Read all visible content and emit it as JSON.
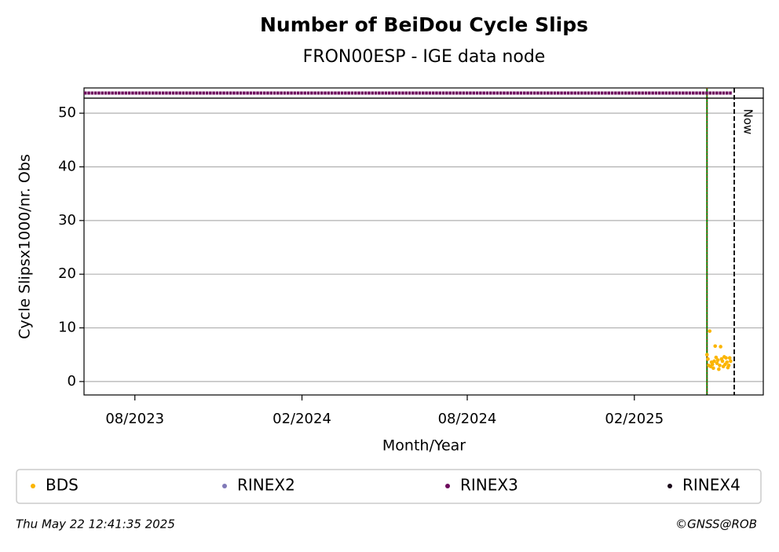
{
  "chart_data": {
    "type": "scatter",
    "title": "Number of BeiDou Cycle Slips",
    "subtitle": "FRON00ESP - IGE data node",
    "xlabel": "Month/Year",
    "ylabel": "Cycle Slipsx1000/nr. Obs",
    "xlim": [
      "2023-06-06",
      "2025-06-23"
    ],
    "xticks": [
      {
        "value": "2023-08",
        "label": "08/2023"
      },
      {
        "value": "2024-02",
        "label": "02/2024"
      },
      {
        "value": "2024-08",
        "label": "08/2024"
      },
      {
        "value": "2025-02",
        "label": "02/2025"
      }
    ],
    "ylim": [
      -2.5,
      52.8
    ],
    "yticks": [
      0,
      10,
      20,
      30,
      40,
      50
    ],
    "grid": true,
    "series": [
      {
        "name": "BDS",
        "color": "#fbb500",
        "x": [
          "2025-04-22",
          "2025-04-23",
          "2025-04-24",
          "2025-04-25",
          "2025-04-26",
          "2025-04-27",
          "2025-04-28",
          "2025-04-29",
          "2025-04-30",
          "2025-05-01",
          "2025-05-02",
          "2025-05-03",
          "2025-05-04",
          "2025-05-05",
          "2025-05-06",
          "2025-05-07",
          "2025-05-08",
          "2025-05-09",
          "2025-05-10",
          "2025-05-11",
          "2025-05-12",
          "2025-05-13",
          "2025-05-14",
          "2025-05-15",
          "2025-05-16",
          "2025-05-17",
          "2025-05-18"
        ],
        "values": [
          5.0,
          4.2,
          3.0,
          9.4,
          2.8,
          3.6,
          3.2,
          2.5,
          3.8,
          6.6,
          4.5,
          3.4,
          4.0,
          2.3,
          3.0,
          6.5,
          4.2,
          3.8,
          2.8,
          4.6,
          3.2,
          4.4,
          3.6,
          2.6,
          3.0,
          4.4,
          3.8
        ]
      },
      {
        "name": "RINEX2",
        "color": "#8079b8",
        "x": [],
        "values": []
      },
      {
        "name": "RINEX3",
        "color": "#6d0a5c",
        "x": [],
        "values": [],
        "span": [
          "2023-06-06",
          "2025-05-20"
        ]
      },
      {
        "name": "RINEX4",
        "color": "#1a0a1a",
        "x": [],
        "values": []
      }
    ],
    "markers": [
      {
        "x": "2025-04-22",
        "color": "#008000",
        "overlay_color": "#e00000"
      }
    ],
    "now": {
      "x": "2025-05-22",
      "label": "Now"
    },
    "timestamp": "Thu May 22 12:41:35 2025",
    "credit": "©GNSS@ROB"
  }
}
